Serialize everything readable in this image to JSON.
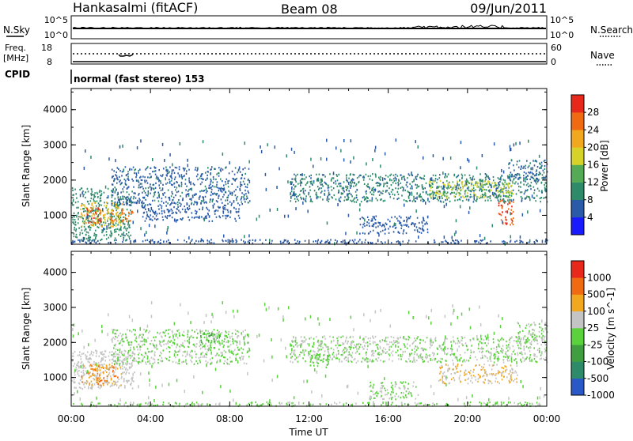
{
  "header": {
    "station": "Hankasalmi (fitACF)",
    "beam": "Beam 08",
    "date": "09/Jun/2011"
  },
  "noise_panel": {
    "left_label": "N.Sky",
    "right_label": "N.Search",
    "left_ticks": [
      "10^5",
      "10^0"
    ],
    "right_ticks": [
      "10^5",
      "10^0"
    ]
  },
  "freq_panel": {
    "left_label_top": "Freq.",
    "left_label_bottom": "[MHz]",
    "right_label": "Nave",
    "left_ticks": [
      "18",
      "8"
    ],
    "right_ticks": [
      "60",
      "0"
    ]
  },
  "cpid": {
    "label": "CPID",
    "text": "normal (fast stereo) 153"
  },
  "x_axis": {
    "ticks": [
      "00:00",
      "04:00",
      "08:00",
      "12:00",
      "16:00",
      "20:00",
      "00:00"
    ],
    "label": "Time UT"
  },
  "chart_data": [
    {
      "type": "heatmap",
      "ylabel": "Slant Range [km]",
      "y_ticks": [
        "1000",
        "2000",
        "3000",
        "4000"
      ],
      "xlim": [
        0,
        24
      ],
      "ylim": [
        180,
        4600
      ],
      "colorbar": {
        "label": "Power [dB]",
        "ticks": [
          "4",
          "8",
          "12",
          "16",
          "20",
          "24",
          "28"
        ],
        "range": [
          0,
          32
        ],
        "colors": [
          "#1a1aff",
          "#2a5aa8",
          "#2e8b6a",
          "#55aa55",
          "#d7d22a",
          "#f2a81e",
          "#f06a12",
          "#e8281a"
        ]
      },
      "regions": [
        {
          "t0": 0.0,
          "t1": 3.0,
          "r0": 300,
          "r1": 1800,
          "v": 10
        },
        {
          "t0": 0.4,
          "t1": 2.6,
          "r0": 700,
          "r1": 1400,
          "v": 20
        },
        {
          "t0": 0.7,
          "t1": 1.5,
          "r0": 780,
          "r1": 1250,
          "v": 28
        },
        {
          "t0": 2.0,
          "t1": 3.1,
          "r0": 850,
          "r1": 1200,
          "v": 26
        },
        {
          "t0": 0.0,
          "t1": 24.0,
          "r0": 220,
          "r1": 330,
          "v": 6
        },
        {
          "t0": 2.0,
          "t1": 9.0,
          "r0": 1300,
          "r1": 2400,
          "v": 7
        },
        {
          "t0": 3.5,
          "t1": 8.5,
          "r0": 850,
          "r1": 1300,
          "v": 6
        },
        {
          "t0": 11.0,
          "t1": 24.0,
          "r0": 1400,
          "r1": 2200,
          "v": 9
        },
        {
          "t0": 18.0,
          "t1": 22.5,
          "r0": 1500,
          "r1": 2000,
          "v": 16
        },
        {
          "t0": 21.5,
          "t1": 22.3,
          "r0": 750,
          "r1": 1450,
          "v": 28
        },
        {
          "t0": 14.5,
          "t1": 18.0,
          "r0": 500,
          "r1": 1000,
          "v": 6
        },
        {
          "t0": 22.0,
          "t1": 24.0,
          "r0": 2000,
          "r1": 2600,
          "v": 7
        }
      ]
    },
    {
      "type": "heatmap",
      "ylabel": "Slant Range [km]",
      "y_ticks": [
        "1000",
        "2000",
        "3000",
        "4000"
      ],
      "xlim": [
        0,
        24
      ],
      "ylim": [
        180,
        4600
      ],
      "colorbar": {
        "label": "Velocity [m s^-1]",
        "ticks": [
          "1000",
          "500",
          "100",
          "25",
          "-25",
          "-100",
          "-500",
          "-1000"
        ],
        "range": [
          -1250,
          1250
        ],
        "colors": [
          "#2b58c8",
          "#2e8b6a",
          "#3f9e3f",
          "#5ad23c",
          "#c4c4c4",
          "#f2a81e",
          "#f06a12",
          "#e8281a"
        ]
      },
      "regions": [
        {
          "t0": 0.0,
          "t1": 3.2,
          "r0": 700,
          "r1": 1800,
          "v": 150
        },
        {
          "t0": 0.5,
          "t1": 2.5,
          "r0": 800,
          "r1": 1400,
          "v": 600
        },
        {
          "t0": 0.0,
          "t1": 24.0,
          "r0": 200,
          "r1": 320,
          "v": -50
        },
        {
          "t0": 2.0,
          "t1": 9.0,
          "r0": 1400,
          "r1": 2400,
          "v": 0
        },
        {
          "t0": 6.5,
          "t1": 7.5,
          "r0": 2000,
          "r1": 2300,
          "v": -300
        },
        {
          "t0": 11.0,
          "t1": 24.0,
          "r0": 1450,
          "r1": 2200,
          "v": 0
        },
        {
          "t0": 18.5,
          "t1": 22.5,
          "r0": 850,
          "r1": 1400,
          "v": 300
        },
        {
          "t0": 22.5,
          "t1": 24.0,
          "r0": 2000,
          "r1": 2600,
          "v": 0
        },
        {
          "t0": 15.0,
          "t1": 17.5,
          "r0": 400,
          "r1": 900,
          "v": -10
        },
        {
          "t0": 12.0,
          "t1": 13.0,
          "r0": 1300,
          "r1": 1700,
          "v": -200
        }
      ]
    }
  ]
}
